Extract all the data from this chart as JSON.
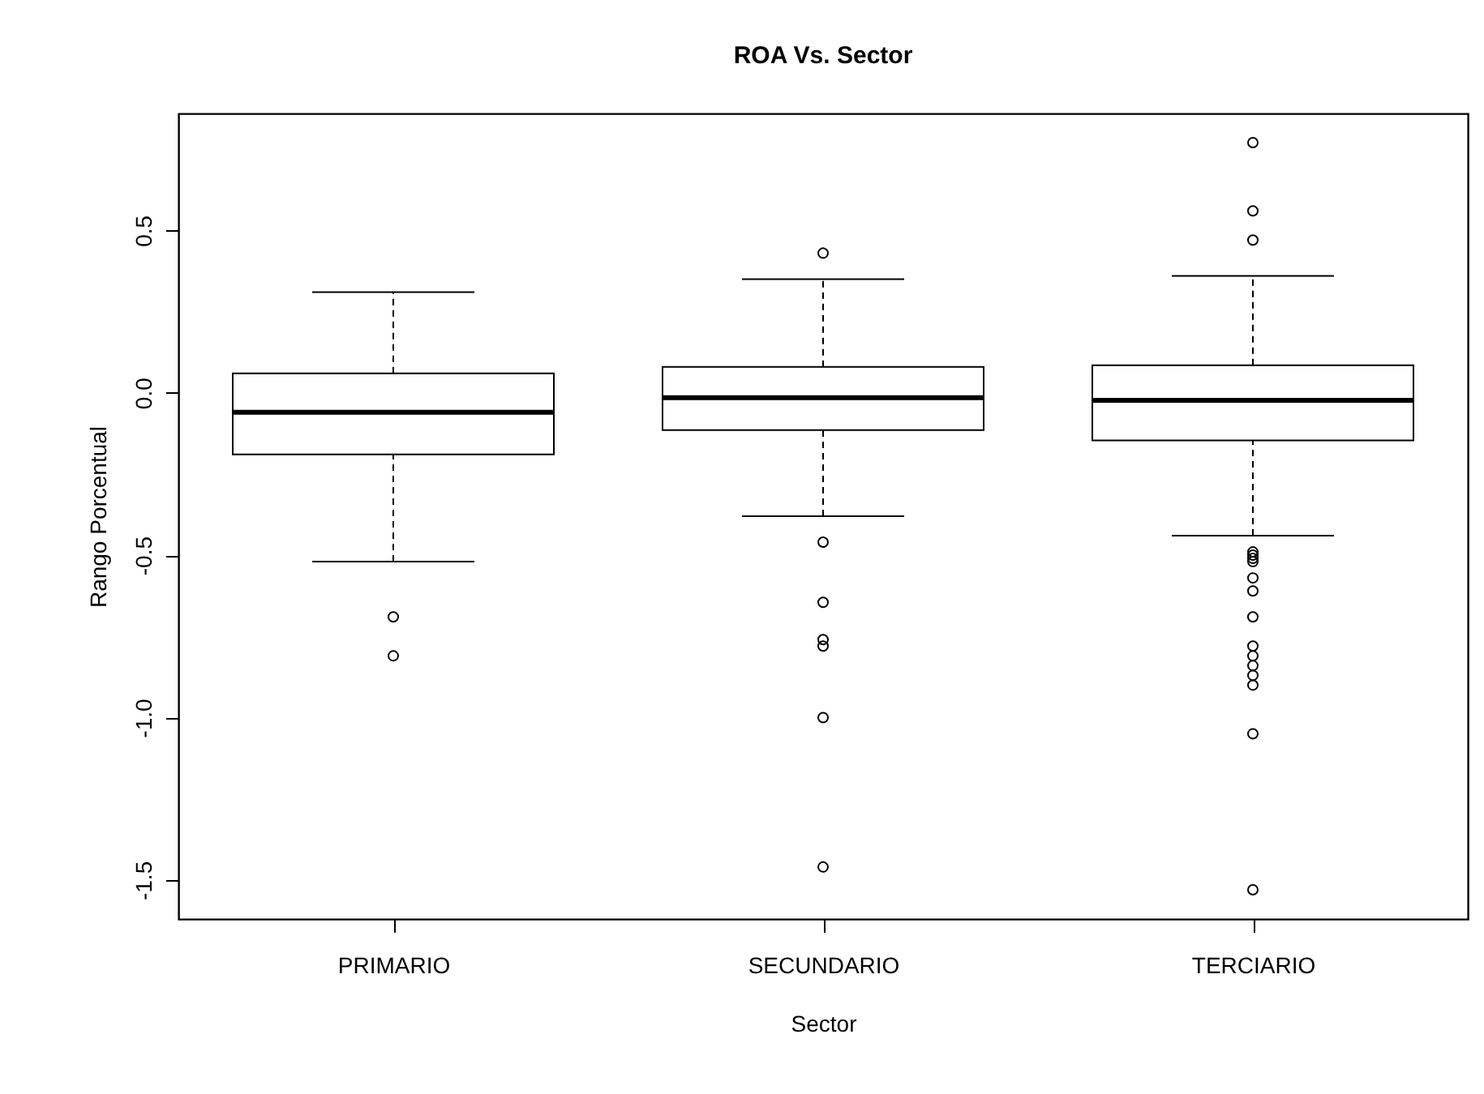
{
  "chart_data": {
    "type": "box",
    "title": "ROA Vs. Sector",
    "xlabel": "Sector",
    "ylabel": "Rango Porcentual",
    "categories": [
      "PRIMARIO",
      "SECUNDARIO",
      "TERCIARIO"
    ],
    "boxes": [
      {
        "low": -0.52,
        "q1": -0.19,
        "median": -0.06,
        "q3": 0.06,
        "high": 0.31,
        "outliers": [
          -0.69,
          -0.81
        ]
      },
      {
        "low": -0.38,
        "q1": -0.115,
        "median": -0.015,
        "q3": 0.08,
        "high": 0.35,
        "outliers": [
          0.43,
          -0.46,
          -0.645,
          -0.76,
          -0.78,
          -1.0,
          -1.46
        ]
      },
      {
        "low": -0.44,
        "q1": -0.147,
        "median": -0.023,
        "q3": 0.085,
        "high": 0.36,
        "outliers": [
          0.77,
          0.56,
          0.47,
          -0.49,
          -0.5,
          -0.51,
          -0.52,
          -0.57,
          -0.61,
          -0.69,
          -0.78,
          -0.81,
          -0.84,
          -0.87,
          -0.9,
          -1.05,
          -1.53
        ]
      }
    ],
    "color": "#000000",
    "ylim": [
      -1.62,
      0.86
    ],
    "yticks": [
      {
        "value": -1.5,
        "label": "-1.5"
      },
      {
        "value": -1.0,
        "label": "-1.0"
      },
      {
        "value": -0.5,
        "label": "-0.5"
      },
      {
        "value": 0.0,
        "label": "0.0"
      },
      {
        "value": 0.5,
        "label": "0.5"
      }
    ],
    "grid": false,
    "marker": "circle"
  }
}
